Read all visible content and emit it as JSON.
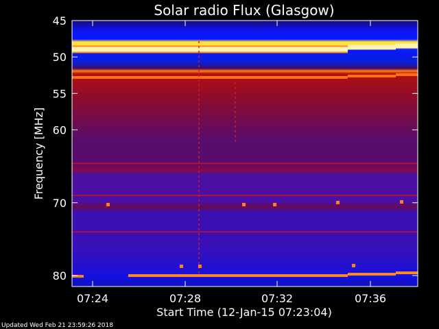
{
  "title": "Solar radio Flux (Glasgow)",
  "footer": "Updated Wed Feb 21 23:59:26 2018",
  "chart_data": {
    "type": "heatmap",
    "title": "Solar radio Flux (Glasgow)",
    "xlabel": "Start Time (12-Jan-15 07:23:04)",
    "ylabel": "Frequency [MHz]",
    "x_ticks": [
      "07:24",
      "07:28",
      "07:32",
      "07:36"
    ],
    "y_ticks": [
      45,
      50,
      55,
      60,
      70,
      80
    ],
    "axis_y_top_mhz": 45.0,
    "axis_y_bottom_mhz": 81.5,
    "colormap": "dark-blue / blue / violet / red / orange / yellow / white",
    "bright_lanes_mhz": [
      48.9,
      52.8,
      80.0
    ],
    "faint_lanes_mhz": [
      64.6,
      69.0,
      74.0
    ]
  }
}
